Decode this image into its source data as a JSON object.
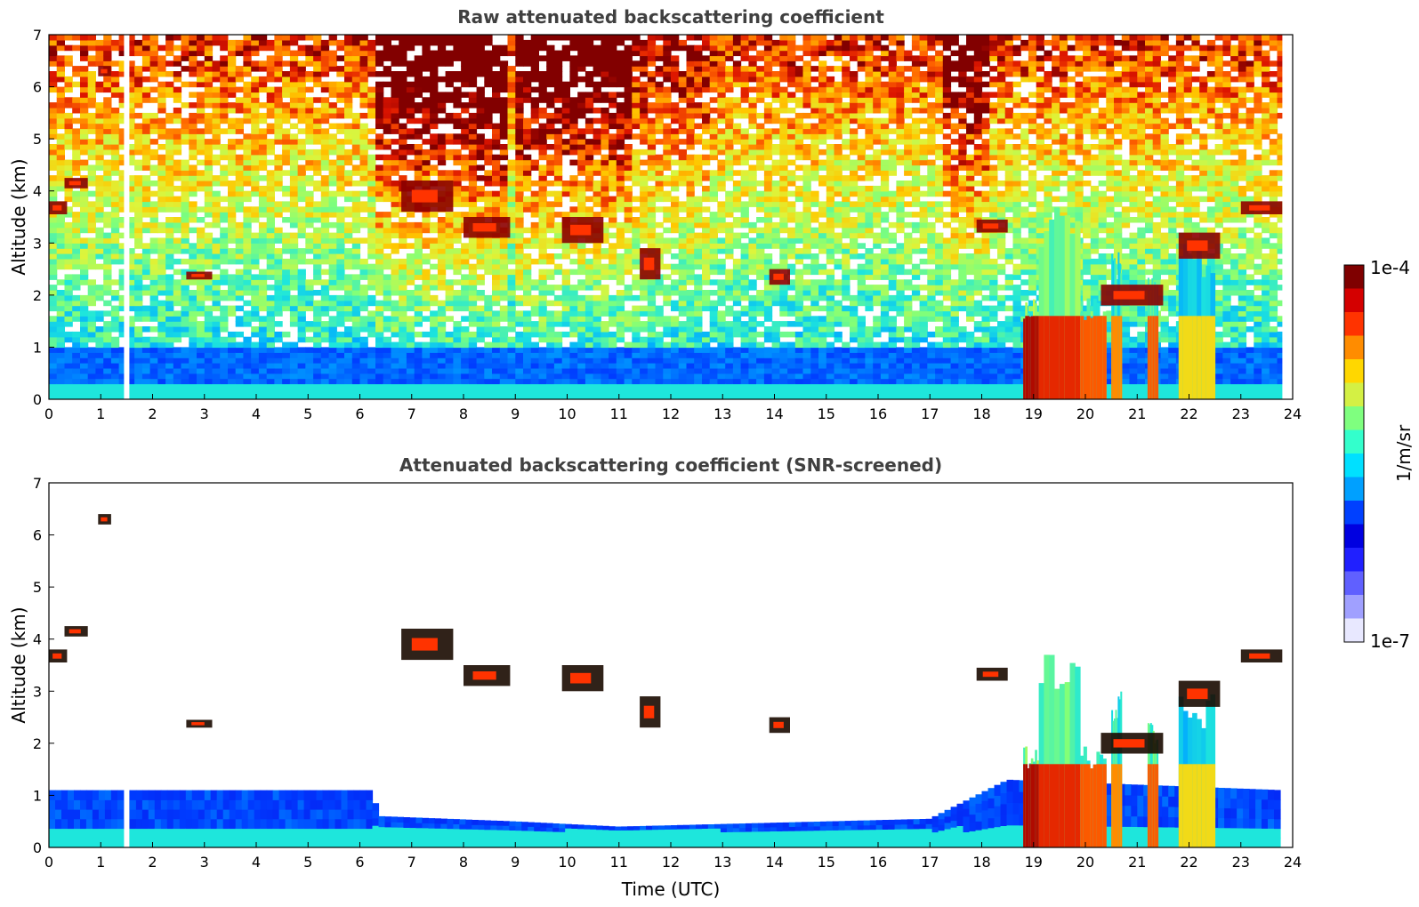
{
  "chart_data": [
    {
      "type": "heatmap",
      "title": "Raw attenuated backscattering coefficient",
      "xlabel": "",
      "ylabel": "Altitude (km)",
      "xlim": [
        0,
        24
      ],
      "ylim": [
        0,
        7
      ],
      "x_ticks": [
        "0",
        "1",
        "2",
        "3",
        "4",
        "5",
        "6",
        "7",
        "8",
        "9",
        "10",
        "11",
        "12",
        "13",
        "14",
        "15",
        "16",
        "17",
        "18",
        "19",
        "20",
        "21",
        "22",
        "23",
        "24"
      ],
      "y_ticks": [
        "0",
        "1",
        "2",
        "3",
        "4",
        "5",
        "6",
        "7"
      ],
      "data_gap_hours": [
        1.5
      ],
      "noise_regions": [
        {
          "x0": 6.3,
          "x1": 8.9,
          "level": 0.9
        },
        {
          "x0": 9.0,
          "x1": 11.3,
          "level": 0.85
        },
        {
          "x0": 11.3,
          "x1": 12.7,
          "level": 0.7
        },
        {
          "x0": 17.2,
          "x1": 18.2,
          "level": 0.8
        }
      ],
      "cloud_layers": [
        {
          "x0": 0.0,
          "x1": 0.35,
          "y0": 3.55,
          "y1": 3.8,
          "level": 1.0
        },
        {
          "x0": 0.3,
          "x1": 0.75,
          "y0": 4.05,
          "y1": 4.25,
          "level": 1.0
        },
        {
          "x0": 0.95,
          "x1": 1.2,
          "y0": 6.2,
          "y1": 6.4,
          "level": 1.0
        },
        {
          "x0": 2.65,
          "x1": 3.15,
          "y0": 2.3,
          "y1": 2.45,
          "level": 1.0
        },
        {
          "x0": 6.8,
          "x1": 7.8,
          "y0": 3.6,
          "y1": 4.2,
          "level": 1.0
        },
        {
          "x0": 8.0,
          "x1": 8.9,
          "y0": 3.1,
          "y1": 3.5,
          "level": 1.0
        },
        {
          "x0": 9.9,
          "x1": 10.7,
          "y0": 3.0,
          "y1": 3.5,
          "level": 1.0
        },
        {
          "x0": 11.4,
          "x1": 11.8,
          "y0": 2.3,
          "y1": 2.9,
          "level": 1.0
        },
        {
          "x0": 13.9,
          "x1": 14.3,
          "y0": 2.2,
          "y1": 2.5,
          "level": 1.0
        },
        {
          "x0": 17.9,
          "x1": 18.5,
          "y0": 3.2,
          "y1": 3.45,
          "level": 1.0
        },
        {
          "x0": 20.3,
          "x1": 21.5,
          "y0": 1.8,
          "y1": 2.2,
          "level": 1.0
        },
        {
          "x0": 21.8,
          "x1": 22.6,
          "y0": 2.7,
          "y1": 3.2,
          "level": 1.0
        },
        {
          "x0": 23.0,
          "x1": 23.8,
          "y0": 3.55,
          "y1": 3.8,
          "level": 1.0
        }
      ],
      "dense_regions": [
        {
          "x0": 18.8,
          "x1": 19.1,
          "y0": 0.0,
          "y1": 2.0,
          "level": 0.75
        },
        {
          "x0": 19.1,
          "x1": 19.9,
          "y0": 0.0,
          "y1": 3.7,
          "level": 0.7
        },
        {
          "x0": 19.9,
          "x1": 20.4,
          "y0": 0.0,
          "y1": 2.0,
          "level": 0.65
        },
        {
          "x0": 20.5,
          "x1": 20.7,
          "y0": 0.0,
          "y1": 3.0,
          "level": 0.6
        },
        {
          "x0": 21.2,
          "x1": 21.4,
          "y0": 0.0,
          "y1": 2.5,
          "level": 0.65
        },
        {
          "x0": 21.8,
          "x1": 22.5,
          "y0": 0.2,
          "y1": 3.0,
          "level": 0.5
        }
      ],
      "boundary_layer_top_km": 1.0
    },
    {
      "type": "heatmap",
      "title": "Attenuated backscattering coefficient (SNR-screened)",
      "xlabel": "Time (UTC)",
      "ylabel": "Altitude (km)",
      "xlim": [
        0,
        24
      ],
      "ylim": [
        0,
        7
      ],
      "x_ticks": [
        "0",
        "1",
        "2",
        "3",
        "4",
        "5",
        "6",
        "7",
        "8",
        "9",
        "10",
        "11",
        "12",
        "13",
        "14",
        "15",
        "16",
        "17",
        "18",
        "19",
        "20",
        "21",
        "22",
        "23",
        "24"
      ],
      "y_ticks": [
        "0",
        "1",
        "2",
        "3",
        "4",
        "5",
        "6",
        "7"
      ],
      "screened": true,
      "screened_layer_top_km": [
        {
          "x": 0,
          "y": 1.1
        },
        {
          "x": 6.2,
          "y": 1.1
        },
        {
          "x": 6.4,
          "y": 0.6
        },
        {
          "x": 9.0,
          "y": 0.5
        },
        {
          "x": 11.0,
          "y": 0.4
        },
        {
          "x": 17.0,
          "y": 0.55
        },
        {
          "x": 18.5,
          "y": 1.3
        },
        {
          "x": 23.8,
          "y": 1.1
        }
      ]
    }
  ],
  "colorbar": {
    "label": "1/m/sr",
    "max_label": "1e-4",
    "min_label": "1e-7",
    "colors": [
      "#7f0000",
      "#d40000",
      "#ff3300",
      "#ff8c00",
      "#ffd700",
      "#d4f044",
      "#7fff7f",
      "#33ffcc",
      "#00e0ff",
      "#00a0ff",
      "#0040ff",
      "#0000e0",
      "#2020ff",
      "#6060ff",
      "#a0a0ff",
      "#e8e8ff"
    ]
  }
}
